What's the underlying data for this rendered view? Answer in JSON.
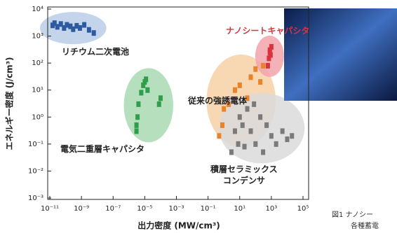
{
  "chart_data": {
    "type": "scatter",
    "xlabel": "出力密度 (MW/cm³)",
    "ylabel": "エネルギー密度 (J/cm³)",
    "log_x": true,
    "log_y": true,
    "xlim": [
      1e-11,
      100000.0
    ],
    "ylim": [
      0.001,
      10000
    ],
    "xticks": [
      {
        "value": 1e-11,
        "label": "10⁻¹¹"
      },
      {
        "value": 1e-09,
        "label": "10⁻⁹"
      },
      {
        "value": 1e-07,
        "label": "10⁻⁷"
      },
      {
        "value": 1e-05,
        "label": "10⁻⁵"
      },
      {
        "value": 0.001,
        "label": "10⁻³"
      },
      {
        "value": 0.1,
        "label": "10⁻¹"
      },
      {
        "value": 10,
        "label": "10¹"
      },
      {
        "value": 1000,
        "label": "10³"
      },
      {
        "value": 100000,
        "label": "10⁵"
      }
    ],
    "yticks": [
      {
        "value": 0.001,
        "label": "10⁻³"
      },
      {
        "value": 0.01,
        "label": "10⁻²"
      },
      {
        "value": 0.1,
        "label": "10⁻¹"
      },
      {
        "value": 1,
        "label": "10⁰"
      },
      {
        "value": 10,
        "label": "10¹"
      },
      {
        "value": 100,
        "label": "10²"
      },
      {
        "value": 1000,
        "label": "10³"
      },
      {
        "value": 10000,
        "label": "10⁴"
      }
    ],
    "series": [
      {
        "name": "リチウム二次電池",
        "color": "#2c5aa0",
        "region_color": "#b9cce8",
        "x": [
          1.5e-11,
          2e-11,
          3e-11,
          5e-11,
          8e-11,
          1.2e-10,
          2e-10,
          3e-10,
          5e-10,
          8e-10,
          1.5e-09,
          3e-09,
          6e-09
        ],
        "values": [
          2500,
          3000,
          2200,
          2800,
          2000,
          2600,
          2300,
          1800,
          2400,
          2000,
          2600,
          1700,
          1300
        ]
      },
      {
        "name": "電気二重層キャパシタ",
        "color": "#2e9e4a",
        "region_color": "#a9d9b1",
        "x": [
          3e-06,
          3e-06,
          3.5e-06,
          4e-06,
          6e-06,
          8e-06,
          1e-05,
          1.2e-05,
          1.5e-05,
          8e-05,
          0.0001
        ],
        "values": [
          0.3,
          0.5,
          1,
          3,
          8,
          15,
          20,
          25,
          10,
          3,
          5
        ]
      },
      {
        "name": "従来の強誘電体",
        "color": "#e8832a",
        "region_color": "#f6d1a4",
        "x": [
          0.5,
          0.8,
          1,
          2,
          5,
          10,
          30,
          50,
          100,
          200,
          300
        ],
        "values": [
          0.2,
          0.5,
          2,
          3,
          10,
          15,
          5,
          30,
          60,
          20,
          80
        ]
      },
      {
        "name": "積層セラミックス\nコンデンサ",
        "color": "#7a7a7a",
        "region_color": "#dadada",
        "x": [
          3,
          5,
          8,
          10,
          15,
          20,
          30,
          50,
          80,
          100,
          200,
          300,
          500,
          1000,
          2000,
          5000,
          10000,
          20000
        ],
        "values": [
          0.05,
          0.3,
          0.1,
          1,
          0.5,
          0.08,
          2,
          0.3,
          3,
          0.1,
          1,
          0.05,
          0.5,
          0.2,
          0.1,
          0.3,
          0.15,
          0.2
        ]
      },
      {
        "name": "ナノシートキャパシタ",
        "color": "#d8333f",
        "region_color": "#f3a3ab",
        "x": [
          600,
          700,
          800,
          800,
          900,
          1000
        ],
        "values": [
          80,
          150,
          250,
          300,
          200,
          400
        ]
      }
    ]
  },
  "caption": [
    "図1 ナノシー",
    "各種蓄電"
  ]
}
